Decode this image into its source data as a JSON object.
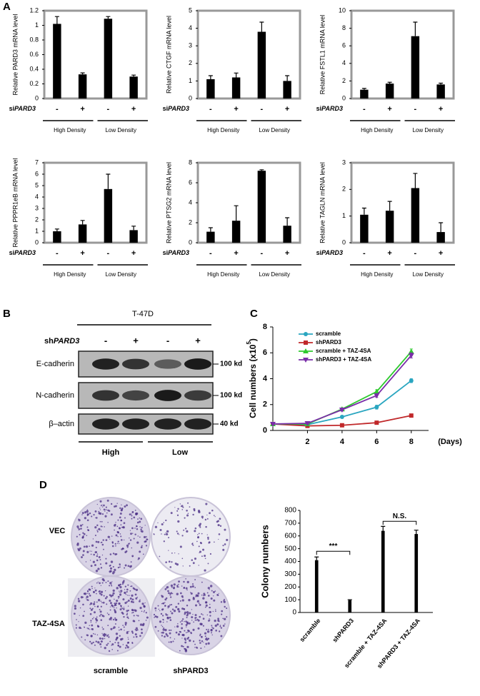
{
  "panels": [
    "A",
    "B",
    "C",
    "D"
  ],
  "chart_data": [
    {
      "type": "bar",
      "y_label": "Relative PARD3 mRNA level",
      "categories": [
        "-",
        "+",
        "-",
        "+"
      ],
      "row_label": [
        "si",
        "PARD3"
      ],
      "groups": [
        "High Density",
        "Low Density"
      ],
      "values": [
        1.02,
        0.33,
        1.09,
        0.3
      ],
      "errors": [
        0.1,
        0.02,
        0.03,
        0.02
      ],
      "color": "#000000",
      "ylim": [
        0,
        1.2
      ],
      "yticks": [
        0,
        0.2,
        0.4,
        0.6,
        0.8,
        1,
        1.2
      ]
    },
    {
      "type": "bar",
      "y_label": "Relative CTGF mRNA level",
      "categories": [
        "-",
        "+",
        "-",
        "+"
      ],
      "row_label": [
        "si",
        "PARD3"
      ],
      "groups": [
        "High Density",
        "Low Density"
      ],
      "values": [
        1.1,
        1.2,
        3.8,
        1.0
      ],
      "errors": [
        0.2,
        0.25,
        0.55,
        0.3
      ],
      "color": "#000000",
      "ylim": [
        0,
        5
      ],
      "yticks": [
        0,
        1,
        2,
        3,
        4,
        5
      ]
    },
    {
      "type": "bar",
      "y_label": "Relative FSTL1 mRNA level",
      "categories": [
        "-",
        "+",
        "-",
        "+"
      ],
      "row_label": [
        "si",
        "PARD3"
      ],
      "groups": [
        "High Density",
        "Low Density"
      ],
      "values": [
        1.0,
        1.7,
        7.1,
        1.6
      ],
      "errors": [
        0.15,
        0.15,
        1.6,
        0.15
      ],
      "color": "#000000",
      "ylim": [
        0,
        10
      ],
      "yticks": [
        0,
        2,
        4,
        6,
        8,
        10
      ]
    },
    {
      "type": "bar",
      "y_label": "Relative PPPR1eB mRNA level",
      "categories": [
        "-",
        "+",
        "-",
        "+"
      ],
      "row_label": [
        "si",
        "PARD3"
      ],
      "groups": [
        "High Density",
        "Low Density"
      ],
      "values": [
        1.0,
        1.6,
        4.7,
        1.1
      ],
      "errors": [
        0.2,
        0.35,
        1.3,
        0.35
      ],
      "color": "#000000",
      "ylim": [
        0,
        7
      ],
      "yticks": [
        0,
        1,
        2,
        3,
        4,
        5,
        6,
        7
      ]
    },
    {
      "type": "bar",
      "y_label": "Relative PTSG2 mRNA level",
      "categories": [
        "-",
        "+",
        "-",
        "+"
      ],
      "row_label": [
        "si",
        "PARD3"
      ],
      "groups": [
        "High Density",
        "Low Density"
      ],
      "values": [
        1.1,
        2.2,
        7.2,
        1.7
      ],
      "errors": [
        0.4,
        1.5,
        0.1,
        0.8
      ],
      "color": "#000000",
      "ylim": [
        0,
        8
      ],
      "yticks": [
        0,
        2,
        4,
        6,
        8
      ]
    },
    {
      "type": "bar",
      "y_label": "Relative TAGLN mRNA level",
      "categories": [
        "-",
        "+",
        "-",
        "+"
      ],
      "row_label": [
        "si",
        "PARD3"
      ],
      "groups": [
        "High Density",
        "Low Density"
      ],
      "values": [
        1.05,
        1.2,
        2.05,
        0.4
      ],
      "errors": [
        0.25,
        0.35,
        0.55,
        0.35
      ],
      "color": "#000000",
      "ylim": [
        0,
        3
      ],
      "yticks": [
        0,
        1,
        2,
        3
      ]
    },
    {
      "type": "line",
      "y_label": [
        "Cell numbers (x10",
        "5",
        ")"
      ],
      "x_label": "(Days)",
      "x": [
        0,
        2,
        4,
        6,
        8
      ],
      "xlim": [
        0,
        9
      ],
      "xticks": [
        2,
        4,
        6,
        8
      ],
      "ylim": [
        0,
        8
      ],
      "yticks": [
        0,
        2,
        4,
        6,
        8
      ],
      "series": [
        {
          "name": "scramble",
          "color": "#2aa6c0",
          "marker": "circle",
          "values": [
            0.5,
            0.45,
            1.05,
            1.8,
            3.85
          ],
          "errors": [
            0.05,
            0.05,
            0.1,
            0.15,
            0.15
          ]
        },
        {
          "name": "shPARD3",
          "color": "#c0282a",
          "marker": "square",
          "values": [
            0.5,
            0.35,
            0.4,
            0.6,
            1.15
          ],
          "errors": [
            0.05,
            0.03,
            0.05,
            0.05,
            0.06
          ]
        },
        {
          "name": "scramble + TAZ-4SA",
          "color": "#2ec92e",
          "marker": "triangle-up",
          "values": [
            0.5,
            0.5,
            1.65,
            3.0,
            6.1
          ],
          "errors": [
            0.05,
            0.05,
            0.1,
            0.15,
            0.2
          ]
        },
        {
          "name": "shPARD3 + TAZ-4SA",
          "color": "#7a2ea8",
          "marker": "triangle-down",
          "values": [
            0.5,
            0.55,
            1.6,
            2.7,
            5.8
          ],
          "errors": [
            0.05,
            0.05,
            0.1,
            0.15,
            0.2
          ]
        }
      ]
    },
    {
      "type": "bar",
      "y_label": "Colony numbers",
      "categories": [
        "scramble",
        "shPARD3",
        "scramble + TAZ-4SA",
        "shPARD3 + TAZ-4SA"
      ],
      "values": [
        410,
        95,
        640,
        615
      ],
      "errors": [
        25,
        5,
        35,
        30
      ],
      "color": "#000000",
      "ylim": [
        0,
        800
      ],
      "yticks": [
        0,
        100,
        200,
        300,
        400,
        500,
        600,
        700,
        800
      ],
      "annotations": [
        "***",
        "N.S."
      ]
    }
  ],
  "western_blot": {
    "cell_line": "T-47D",
    "row_label": [
      "sh",
      "PARD3"
    ],
    "lanes": [
      "-",
      "+",
      "-",
      "+"
    ],
    "bands": [
      "E-cadherin",
      "N-cadherin",
      "β–actin"
    ],
    "sizes": [
      "100 kd",
      "100 kd",
      "40 kd"
    ],
    "groups": [
      "High",
      "Low"
    ]
  },
  "colony": {
    "rows": [
      "VEC",
      "TAZ-4SA"
    ],
    "columns": [
      "scramble",
      "shPARD3"
    ]
  }
}
